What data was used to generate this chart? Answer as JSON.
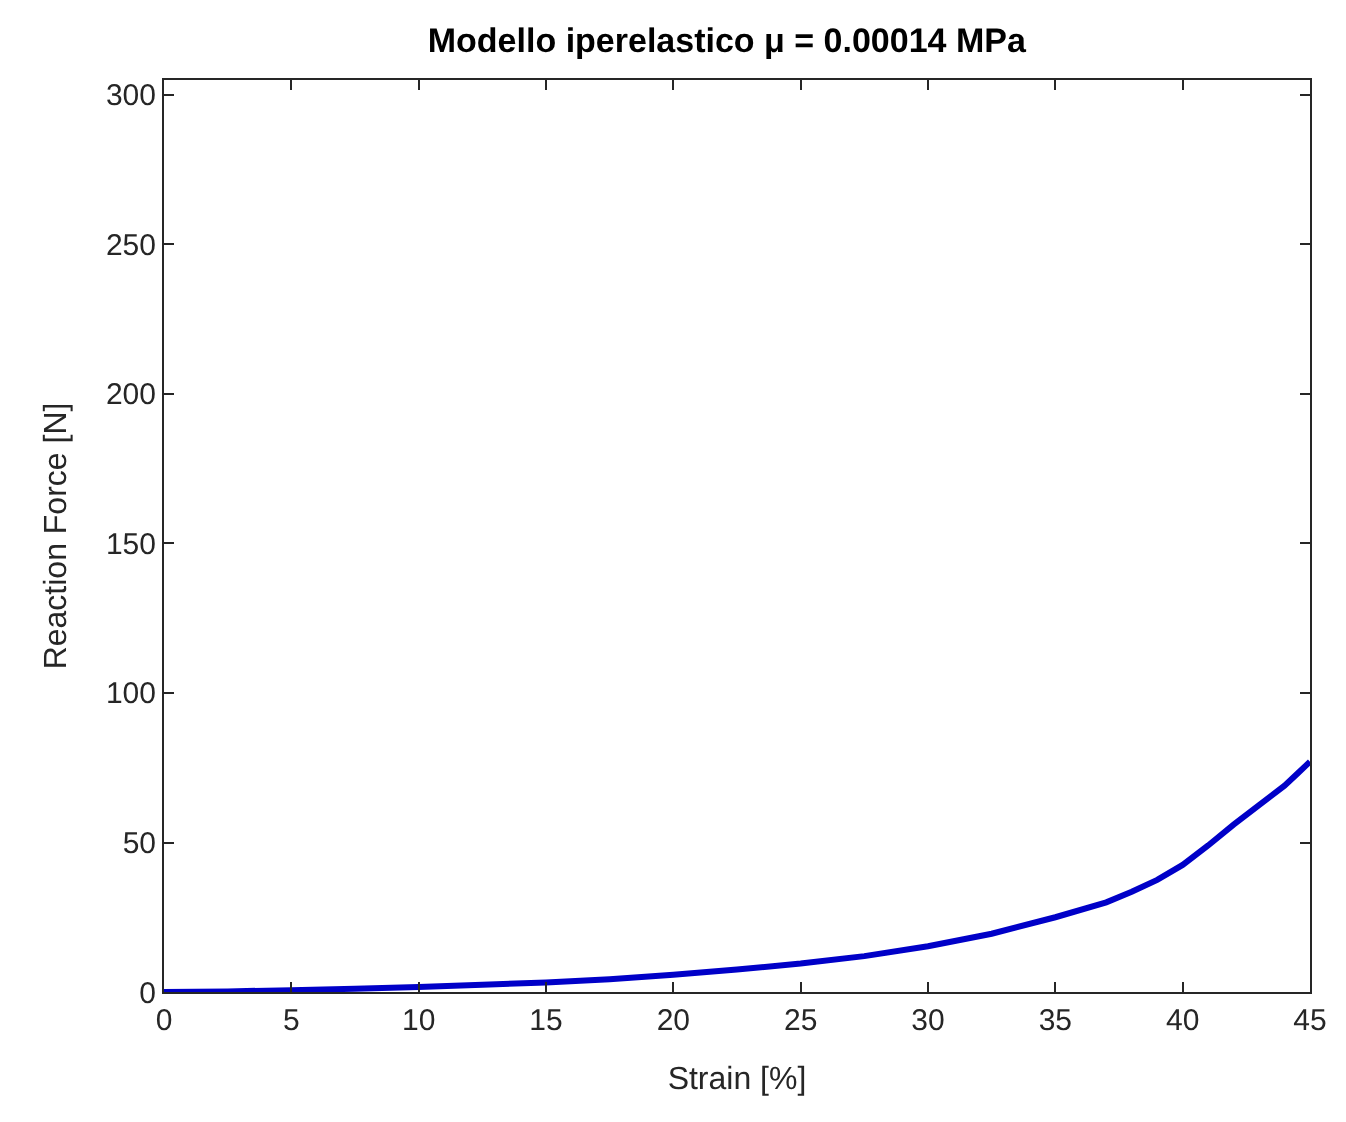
{
  "chart_data": {
    "type": "line",
    "title": "Modello iperelastico μ = 0.00014 MPa",
    "xlabel": "Strain [%]",
    "ylabel": "Reaction Force [N]",
    "x": [
      0,
      2.5,
      5,
      7.5,
      10,
      12.5,
      15,
      17.5,
      20,
      22.5,
      25,
      27.5,
      30,
      32.5,
      35,
      37,
      38,
      39,
      40,
      41,
      42,
      43,
      44,
      44.5,
      45
    ],
    "series": [
      {
        "color": "#0000c8",
        "values": [
          0,
          0.2,
          0.6,
          1.1,
          1.7,
          2.4,
          3.2,
          4.3,
          5.8,
          7.5,
          9.5,
          12,
          15.3,
          19.5,
          25,
          30,
          33.5,
          37.5,
          42.5,
          49,
          56,
          62.5,
          69,
          73,
          77
        ]
      }
    ],
    "xlim": [
      0,
      45
    ],
    "xticks": [
      0,
      5,
      10,
      15,
      20,
      25,
      30,
      35,
      40,
      45
    ],
    "ylim": [
      0,
      305
    ],
    "yticks": [
      0,
      50,
      100,
      150,
      200,
      250,
      300
    ],
    "grid": false,
    "legend": false,
    "marker": "none",
    "line_style": "solid"
  }
}
